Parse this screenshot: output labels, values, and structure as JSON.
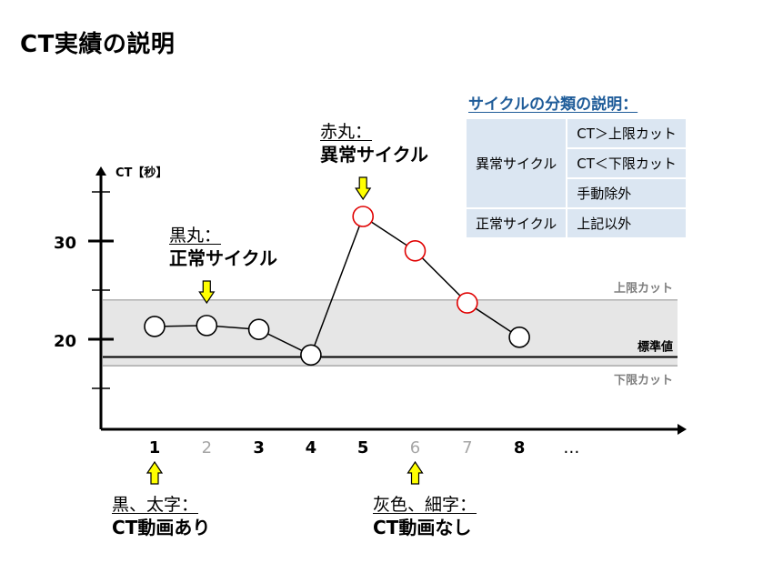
{
  "title": "CT実績の説明",
  "chart_data": {
    "type": "line",
    "ylabel": "CT【秒】",
    "y_ticks": [
      20,
      30
    ],
    "x": [
      "1",
      "2",
      "3",
      "4",
      "5",
      "6",
      "7",
      "8",
      "…"
    ],
    "x_emphasis": [
      "bold",
      "faint",
      "bold",
      "bold",
      "bold",
      "faint",
      "faint",
      "bold",
      "normal"
    ],
    "series": [
      {
        "x": [
          1,
          2,
          3,
          4,
          5,
          6,
          7,
          8
        ],
        "values": [
          21.3,
          21.4,
          21.0,
          18.4,
          32.5,
          29.0,
          23.7,
          20.2
        ],
        "point_type": [
          "normal",
          "normal",
          "normal",
          "normal",
          "abnormal",
          "abnormal",
          "abnormal",
          "normal"
        ]
      }
    ],
    "reference_lines": [
      {
        "label": "上限カット",
        "value": 24.0
      },
      {
        "label": "標準値",
        "value": 18.2
      },
      {
        "label": "下限カット",
        "value": 17.3
      }
    ],
    "colors": {
      "normal_marker": "#000000",
      "abnormal_marker": "#e00000",
      "band": "#e6e6e6",
      "arrow_fill": "#ffff00",
      "faint_label": "#a6a6a6"
    }
  },
  "notes": {
    "normal": {
      "sub": "黒丸：",
      "main": "正常サイクル"
    },
    "abnormal": {
      "sub": "赤丸：",
      "main": "異常サイクル"
    },
    "video_yes": {
      "sub": "黒、太字：",
      "main": "CT動画あり"
    },
    "video_no": {
      "sub": "灰色、細字：",
      "main": "CT動画なし"
    }
  },
  "classification": {
    "title": "サイクルの分類の説明：",
    "abnormal_label": "異常サイクル",
    "abnormal_items": [
      "CT＞上限カット",
      "CT＜下限カット",
      "手動除外"
    ],
    "normal_label": "正常サイクル",
    "normal_item": "上記以外"
  }
}
